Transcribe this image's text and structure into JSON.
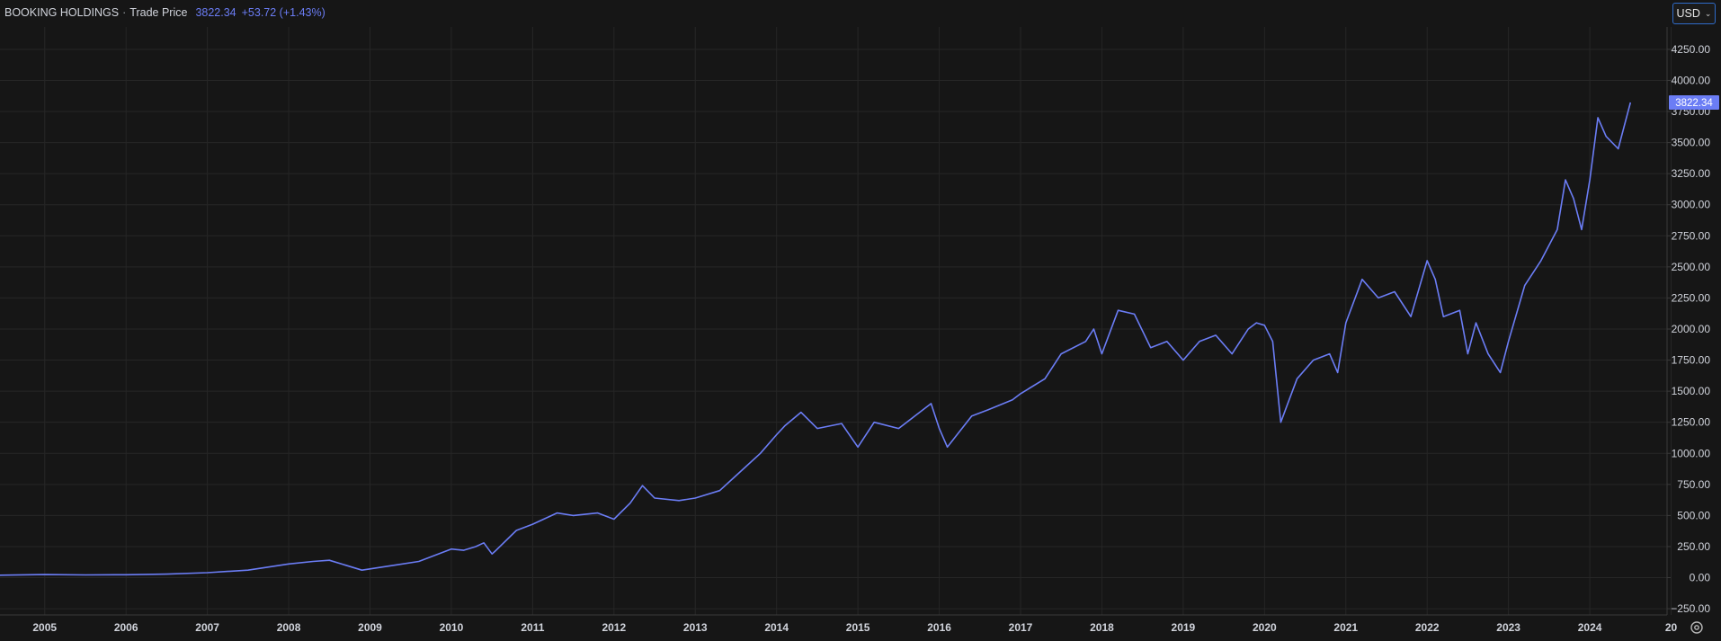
{
  "header": {
    "symbol": "BOOKING HOLDINGS",
    "separator": "·",
    "price_type": "Trade Price",
    "last_price": "3822.34",
    "change": "+53.72 (+1.43%)"
  },
  "currency_selector": {
    "value": "USD"
  },
  "icons": {
    "currency_dropdown": "chevron-down-icon",
    "settings": "settings-icon"
  },
  "colors": {
    "background": "#161616",
    "grid": "#262626",
    "line": "#6b7df5",
    "axis_text": "#d1d4dc",
    "price_tag": "#6b7df5"
  },
  "chart_data": {
    "type": "line",
    "title": "",
    "xlabel": "",
    "ylabel": "",
    "xlim": [
      2004.45,
      2024.95
    ],
    "ylim": [
      -300,
      4430
    ],
    "grid": true,
    "legend": "none",
    "x_ticks": [
      "2005",
      "2006",
      "2007",
      "2008",
      "2009",
      "2010",
      "2011",
      "2012",
      "2013",
      "2014",
      "2015",
      "2016",
      "2017",
      "2018",
      "2019",
      "2020",
      "2021",
      "2022",
      "2023",
      "2024",
      "20"
    ],
    "y_ticks": [
      "−250.00",
      "0.00",
      "250.00",
      "500.00",
      "750.00",
      "1000.00",
      "1250.00",
      "1500.00",
      "1750.00",
      "2000.00",
      "2250.00",
      "2500.00",
      "2750.00",
      "3000.00",
      "3250.00",
      "3500.00",
      "3750.00",
      "4000.00",
      "4250.00"
    ],
    "last_value_label": "3822.34",
    "series": [
      {
        "x": [
          2004.45,
          2005.0,
          2005.5,
          2006.0,
          2006.5,
          2007.0,
          2007.5,
          2008.0,
          2008.3,
          2008.5,
          2008.7,
          2008.9,
          2009.0,
          2009.3,
          2009.6,
          2009.8,
          2010.0,
          2010.15,
          2010.3,
          2010.4,
          2010.5,
          2010.55,
          2010.8,
          2011.0,
          2011.3,
          2011.5,
          2011.8,
          2012.0,
          2012.2,
          2012.35,
          2012.5,
          2012.8,
          2013.0,
          2013.3,
          2013.5,
          2013.8,
          2014.0,
          2014.1,
          2014.3,
          2014.5,
          2014.8,
          2015.0,
          2015.2,
          2015.5,
          2015.7,
          2015.9,
          2016.0,
          2016.1,
          2016.4,
          2016.6,
          2016.9,
          2017.0,
          2017.3,
          2017.5,
          2017.8,
          2017.9,
          2018.0,
          2018.2,
          2018.4,
          2018.6,
          2018.8,
          2019.0,
          2019.2,
          2019.4,
          2019.6,
          2019.8,
          2019.9,
          2020.0,
          2020.1,
          2020.2,
          2020.4,
          2020.6,
          2020.8,
          2020.9,
          2021.0,
          2021.2,
          2021.4,
          2021.6,
          2021.8,
          2022.0,
          2022.1,
          2022.2,
          2022.4,
          2022.5,
          2022.6,
          2022.75,
          2022.9,
          2023.0,
          2023.2,
          2023.4,
          2023.6,
          2023.7,
          2023.8,
          2023.9,
          2024.0,
          2024.1,
          2024.2,
          2024.35,
          2024.5
        ],
        "y": [
          20,
          25,
          22,
          23,
          28,
          40,
          60,
          110,
          130,
          140,
          100,
          60,
          70,
          100,
          130,
          180,
          230,
          220,
          250,
          280,
          190,
          220,
          380,
          430,
          520,
          500,
          520,
          470,
          600,
          740,
          640,
          620,
          640,
          700,
          820,
          1000,
          1150,
          1220,
          1330,
          1200,
          1240,
          1050,
          1250,
          1200,
          1300,
          1400,
          1200,
          1050,
          1300,
          1350,
          1430,
          1480,
          1600,
          1800,
          1900,
          2000,
          1800,
          2150,
          2120,
          1850,
          1900,
          1750,
          1900,
          1950,
          1800,
          2000,
          2050,
          2030,
          1900,
          1250,
          1600,
          1750,
          1800,
          1650,
          2050,
          2400,
          2250,
          2300,
          2100,
          2550,
          2400,
          2100,
          2150,
          1800,
          2050,
          1800,
          1650,
          1900,
          2350,
          2550,
          2800,
          3200,
          3050,
          2800,
          3200,
          3700,
          3550,
          3450,
          3822.34
        ]
      }
    ]
  }
}
